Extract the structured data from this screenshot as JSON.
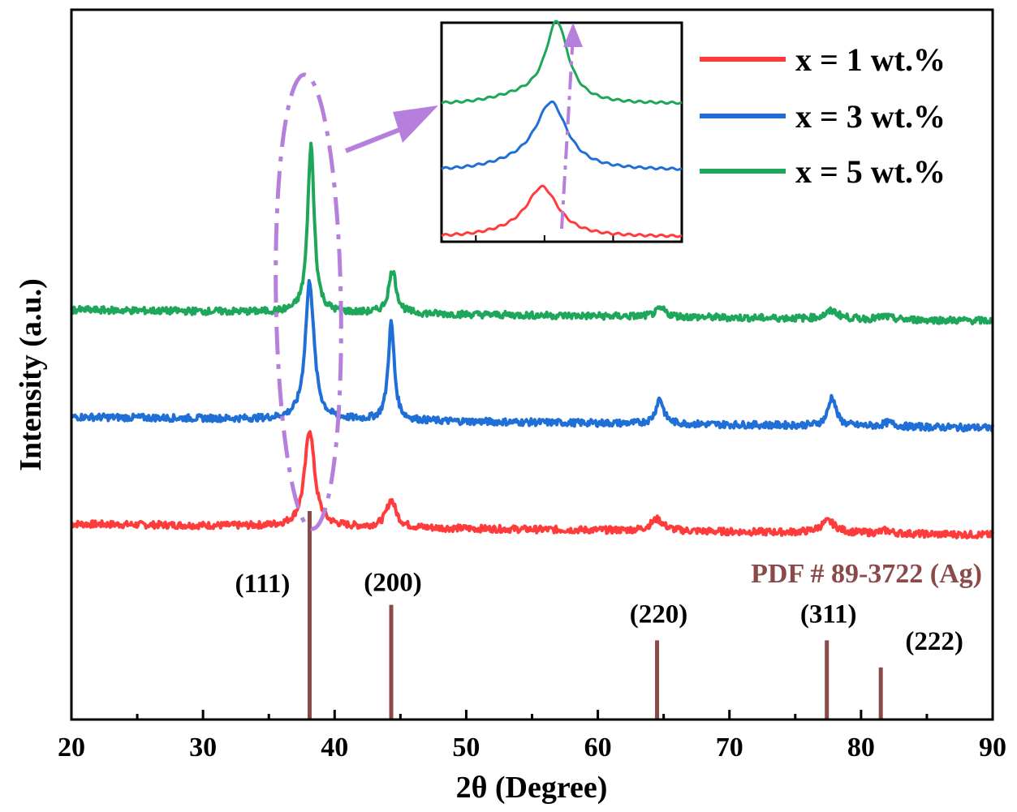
{
  "chart_data": {
    "type": "line",
    "title": "",
    "xlabel": "2θ (Degree)",
    "ylabel": "Intensity (a.u.)",
    "xlim": [
      20,
      90
    ],
    "xticks": [
      20,
      30,
      40,
      50,
      60,
      70,
      80,
      90
    ],
    "xtick_labels": [
      "20",
      "30",
      "40",
      "50",
      "60",
      "70",
      "80",
      "90"
    ],
    "colors": {
      "x1": "#ff3b3b",
      "x3": "#1f6fd6",
      "x5": "#1ea65a",
      "reference": "#8b4a4a",
      "highlight": "#b77fdc"
    },
    "series": [
      {
        "name": "x = 1 wt.%",
        "key": "x1",
        "color": "#ff3b3b",
        "baseline": 0.0,
        "peaks": [
          {
            "x": 38.1,
            "h": 1.0,
            "w": 0.45
          },
          {
            "x": 44.3,
            "h": 0.28,
            "w": 0.45
          },
          {
            "x": 64.5,
            "h": 0.12,
            "w": 0.6
          },
          {
            "x": 77.5,
            "h": 0.12,
            "w": 0.7
          },
          {
            "x": 81.9,
            "h": 0.03,
            "w": 0.5
          }
        ]
      },
      {
        "name": "x = 3 wt.%",
        "key": "x3",
        "color": "#1f6fd6",
        "baseline": 1.1,
        "peaks": [
          {
            "x": 38.1,
            "h": 1.42,
            "w": 0.4
          },
          {
            "x": 44.3,
            "h": 1.0,
            "w": 0.28
          },
          {
            "x": 64.7,
            "h": 0.26,
            "w": 0.35
          },
          {
            "x": 77.8,
            "h": 0.3,
            "w": 0.35
          },
          {
            "x": 82.1,
            "h": 0.04,
            "w": 0.5
          }
        ]
      },
      {
        "name": "x = 5 wt.%",
        "key": "x5",
        "color": "#1ea65a",
        "baseline": 2.2,
        "peaks": [
          {
            "x": 38.2,
            "h": 1.73,
            "w": 0.3
          },
          {
            "x": 44.4,
            "h": 0.44,
            "w": 0.35
          },
          {
            "x": 64.8,
            "h": 0.08,
            "w": 0.5
          },
          {
            "x": 77.8,
            "h": 0.08,
            "w": 0.6
          },
          {
            "x": 81.8,
            "h": 0.03,
            "w": 0.5
          }
        ]
      }
    ],
    "reference": {
      "label": "PDF # 89-3722 (Ag)",
      "lines": [
        {
          "x": 38.1,
          "h": 1.0,
          "label": "(111)"
        },
        {
          "x": 44.3,
          "h": 0.55,
          "label": "(200)"
        },
        {
          "x": 64.5,
          "h": 0.38,
          "label": "(220)"
        },
        {
          "x": 77.4,
          "h": 0.38,
          "label": "(311)"
        },
        {
          "x": 81.5,
          "h": 0.25,
          "label": "(222)"
        }
      ]
    },
    "legend": {
      "position": "top-right"
    },
    "inset": {
      "description": "zoom of (111) peak region",
      "xlim": [
        36.5,
        40.0
      ],
      "ticks": [
        37,
        38,
        39
      ]
    }
  }
}
